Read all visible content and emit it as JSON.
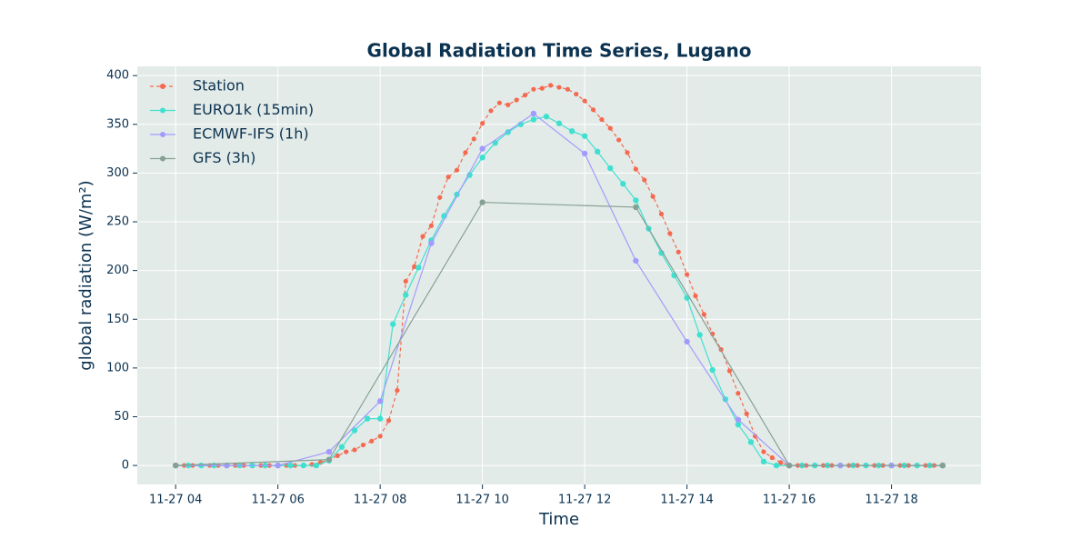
{
  "chart_data": {
    "type": "line",
    "title": "Global Radiation Time Series, Lugano",
    "xlabel": "Time",
    "ylabel": "global radiation (W/m²)",
    "xlim": [
      "11-27 03:15",
      "11-27 19:45"
    ],
    "xticks": [
      "11-27 04",
      "11-27 06",
      "11-27 08",
      "11-27 10",
      "11-27 12",
      "11-27 14",
      "11-27 16",
      "11-27 18"
    ],
    "ylim": [
      -19.5,
      409.5
    ],
    "yticks": [
      0,
      50,
      100,
      150,
      200,
      250,
      300,
      350,
      400
    ],
    "grid": true,
    "legend": "upper left",
    "series": [
      {
        "name": "Station",
        "color": "#f4694f",
        "dashed": true,
        "x": [
          "11-27 04:00",
          "11-27 04:10",
          "11-27 04:20",
          "11-27 04:30",
          "11-27 04:40",
          "11-27 04:50",
          "11-27 05:00",
          "11-27 05:10",
          "11-27 05:20",
          "11-27 05:30",
          "11-27 05:40",
          "11-27 05:50",
          "11-27 06:00",
          "11-27 06:10",
          "11-27 06:20",
          "11-27 06:30",
          "11-27 06:40",
          "11-27 06:50",
          "11-27 07:00",
          "11-27 07:10",
          "11-27 07:20",
          "11-27 07:30",
          "11-27 07:40",
          "11-27 07:50",
          "11-27 08:00",
          "11-27 08:10",
          "11-27 08:20",
          "11-27 08:30",
          "11-27 08:40",
          "11-27 08:50",
          "11-27 09:00",
          "11-27 09:10",
          "11-27 09:20",
          "11-27 09:30",
          "11-27 09:40",
          "11-27 09:50",
          "11-27 10:00",
          "11-27 10:10",
          "11-27 10:20",
          "11-27 10:30",
          "11-27 10:40",
          "11-27 10:50",
          "11-27 11:00",
          "11-27 11:10",
          "11-27 11:20",
          "11-27 11:30",
          "11-27 11:40",
          "11-27 11:50",
          "11-27 12:00",
          "11-27 12:10",
          "11-27 12:20",
          "11-27 12:30",
          "11-27 12:40",
          "11-27 12:50",
          "11-27 13:00",
          "11-27 13:10",
          "11-27 13:20",
          "11-27 13:30",
          "11-27 13:40",
          "11-27 13:50",
          "11-27 14:00",
          "11-27 14:10",
          "11-27 14:20",
          "11-27 14:30",
          "11-27 14:40",
          "11-27 14:50",
          "11-27 15:00",
          "11-27 15:10",
          "11-27 15:20",
          "11-27 15:30",
          "11-27 15:40",
          "11-27 15:50",
          "11-27 16:00",
          "11-27 16:10",
          "11-27 16:20",
          "11-27 16:30",
          "11-27 16:40",
          "11-27 16:50",
          "11-27 17:00",
          "11-27 17:10",
          "11-27 17:20",
          "11-27 17:30",
          "11-27 17:40",
          "11-27 17:50",
          "11-27 18:00",
          "11-27 18:10",
          "11-27 18:20",
          "11-27 18:30",
          "11-27 18:40",
          "11-27 18:50",
          "11-27 19:00"
        ],
        "values": [
          0,
          0,
          0,
          0,
          0,
          0,
          0,
          0,
          0,
          0,
          0,
          0,
          0,
          0,
          0,
          0,
          1,
          3,
          6,
          10,
          14,
          16,
          21,
          25,
          30,
          46,
          77,
          189,
          204,
          235,
          246,
          275,
          296,
          303,
          321,
          335,
          351,
          364,
          372,
          370,
          375,
          380,
          386,
          387,
          390,
          388,
          386,
          381,
          374,
          365,
          355,
          346,
          334,
          321,
          304,
          293,
          276,
          258,
          238,
          219,
          196,
          174,
          155,
          135,
          119,
          97,
          74,
          53,
          30,
          14,
          8,
          3,
          0,
          0,
          0,
          0,
          0,
          0,
          0,
          0,
          0,
          0,
          0,
          0,
          0,
          0,
          0,
          0,
          0,
          0,
          0
        ]
      },
      {
        "name": "EURO1k (15min)",
        "color": "#40e0d0",
        "x": [
          "11-27 04:00",
          "11-27 04:15",
          "11-27 04:30",
          "11-27 04:45",
          "11-27 05:00",
          "11-27 05:15",
          "11-27 05:30",
          "11-27 05:45",
          "11-27 06:00",
          "11-27 06:15",
          "11-27 06:30",
          "11-27 06:45",
          "11-27 07:00",
          "11-27 07:15",
          "11-27 07:30",
          "11-27 07:45",
          "11-27 08:00",
          "11-27 08:15",
          "11-27 08:30",
          "11-27 08:45",
          "11-27 09:00",
          "11-27 09:15",
          "11-27 09:30",
          "11-27 09:45",
          "11-27 10:00",
          "11-27 10:15",
          "11-27 10:30",
          "11-27 10:45",
          "11-27 11:00",
          "11-27 11:15",
          "11-27 11:30",
          "11-27 11:45",
          "11-27 12:00",
          "11-27 12:15",
          "11-27 12:30",
          "11-27 12:45",
          "11-27 13:00",
          "11-27 13:15",
          "11-27 13:30",
          "11-27 13:45",
          "11-27 14:00",
          "11-27 14:15",
          "11-27 14:30",
          "11-27 14:45",
          "11-27 15:00",
          "11-27 15:15",
          "11-27 15:30",
          "11-27 15:45",
          "11-27 16:00",
          "11-27 16:15",
          "11-27 16:30",
          "11-27 16:45",
          "11-27 17:00",
          "11-27 17:15",
          "11-27 17:30",
          "11-27 17:45",
          "11-27 18:00",
          "11-27 18:15",
          "11-27 18:30",
          "11-27 18:45",
          "11-27 19:00"
        ],
        "values": [
          0,
          0,
          0,
          0,
          0,
          0,
          0,
          0,
          0,
          0,
          0,
          0,
          5,
          19,
          36,
          48,
          48,
          145,
          175,
          203,
          231,
          256,
          278,
          298,
          316,
          331,
          342,
          350,
          355,
          358,
          351,
          343,
          338,
          322,
          305,
          289,
          272,
          243,
          218,
          195,
          172,
          134,
          98,
          68,
          42,
          24,
          4,
          0,
          0,
          0,
          0,
          0,
          0,
          0,
          0,
          0,
          0,
          0,
          0,
          0,
          0
        ]
      },
      {
        "name": "ECMWF-IFS (1h)",
        "color": "#a29bfe",
        "x": [
          "11-27 04:00",
          "11-27 05:00",
          "11-27 06:00",
          "11-27 07:00",
          "11-27 08:00",
          "11-27 09:00",
          "11-27 10:00",
          "11-27 11:00",
          "11-27 12:00",
          "11-27 13:00",
          "11-27 14:00",
          "11-27 15:00",
          "11-27 16:00",
          "11-27 17:00",
          "11-27 18:00",
          "11-27 19:00"
        ],
        "values": [
          0,
          0,
          0,
          14,
          66,
          228,
          325,
          361,
          320,
          210,
          127,
          47,
          0,
          0,
          0,
          0
        ]
      },
      {
        "name": "GFS (3h)",
        "color": "#86a094",
        "x": [
          "11-27 04:00",
          "11-27 07:00",
          "11-27 10:00",
          "11-27 13:00",
          "11-27 16:00",
          "11-27 19:00"
        ],
        "values": [
          0,
          6,
          270,
          265,
          0,
          0
        ]
      }
    ]
  }
}
